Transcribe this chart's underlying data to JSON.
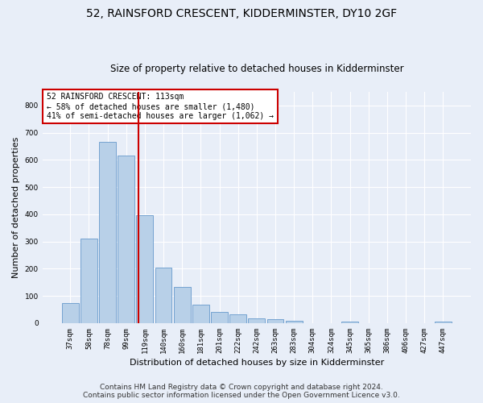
{
  "title": "52, RAINSFORD CRESCENT, KIDDERMINSTER, DY10 2GF",
  "subtitle": "Size of property relative to detached houses in Kidderminster",
  "xlabel": "Distribution of detached houses by size in Kidderminster",
  "ylabel": "Number of detached properties",
  "categories": [
    "37sqm",
    "58sqm",
    "78sqm",
    "99sqm",
    "119sqm",
    "140sqm",
    "160sqm",
    "181sqm",
    "201sqm",
    "222sqm",
    "242sqm",
    "263sqm",
    "283sqm",
    "304sqm",
    "324sqm",
    "345sqm",
    "365sqm",
    "386sqm",
    "406sqm",
    "427sqm",
    "447sqm"
  ],
  "values": [
    75,
    312,
    665,
    615,
    397,
    203,
    133,
    68,
    40,
    33,
    18,
    15,
    10,
    0,
    0,
    6,
    0,
    0,
    0,
    0,
    7
  ],
  "bar_color": "#b8d0e8",
  "bar_edgecolor": "#6699cc",
  "annotation_text": "52 RAINSFORD CRESCENT: 113sqm\n← 58% of detached houses are smaller (1,480)\n41% of semi-detached houses are larger (1,062) →",
  "annotation_box_color": "#ffffff",
  "annotation_box_edgecolor": "#cc0000",
  "vline_color": "#cc0000",
  "vline_x": 3.68,
  "ylim": [
    0,
    850
  ],
  "yticks": [
    0,
    100,
    200,
    300,
    400,
    500,
    600,
    700,
    800
  ],
  "footer": "Contains HM Land Registry data © Crown copyright and database right 2024.\nContains public sector information licensed under the Open Government Licence v3.0.",
  "bg_color": "#e8eef8",
  "grid_color": "#ffffff",
  "title_fontsize": 10,
  "subtitle_fontsize": 8.5,
  "tick_fontsize": 6.5,
  "ylabel_fontsize": 8,
  "xlabel_fontsize": 8,
  "annotation_fontsize": 7,
  "footer_fontsize": 6.5
}
